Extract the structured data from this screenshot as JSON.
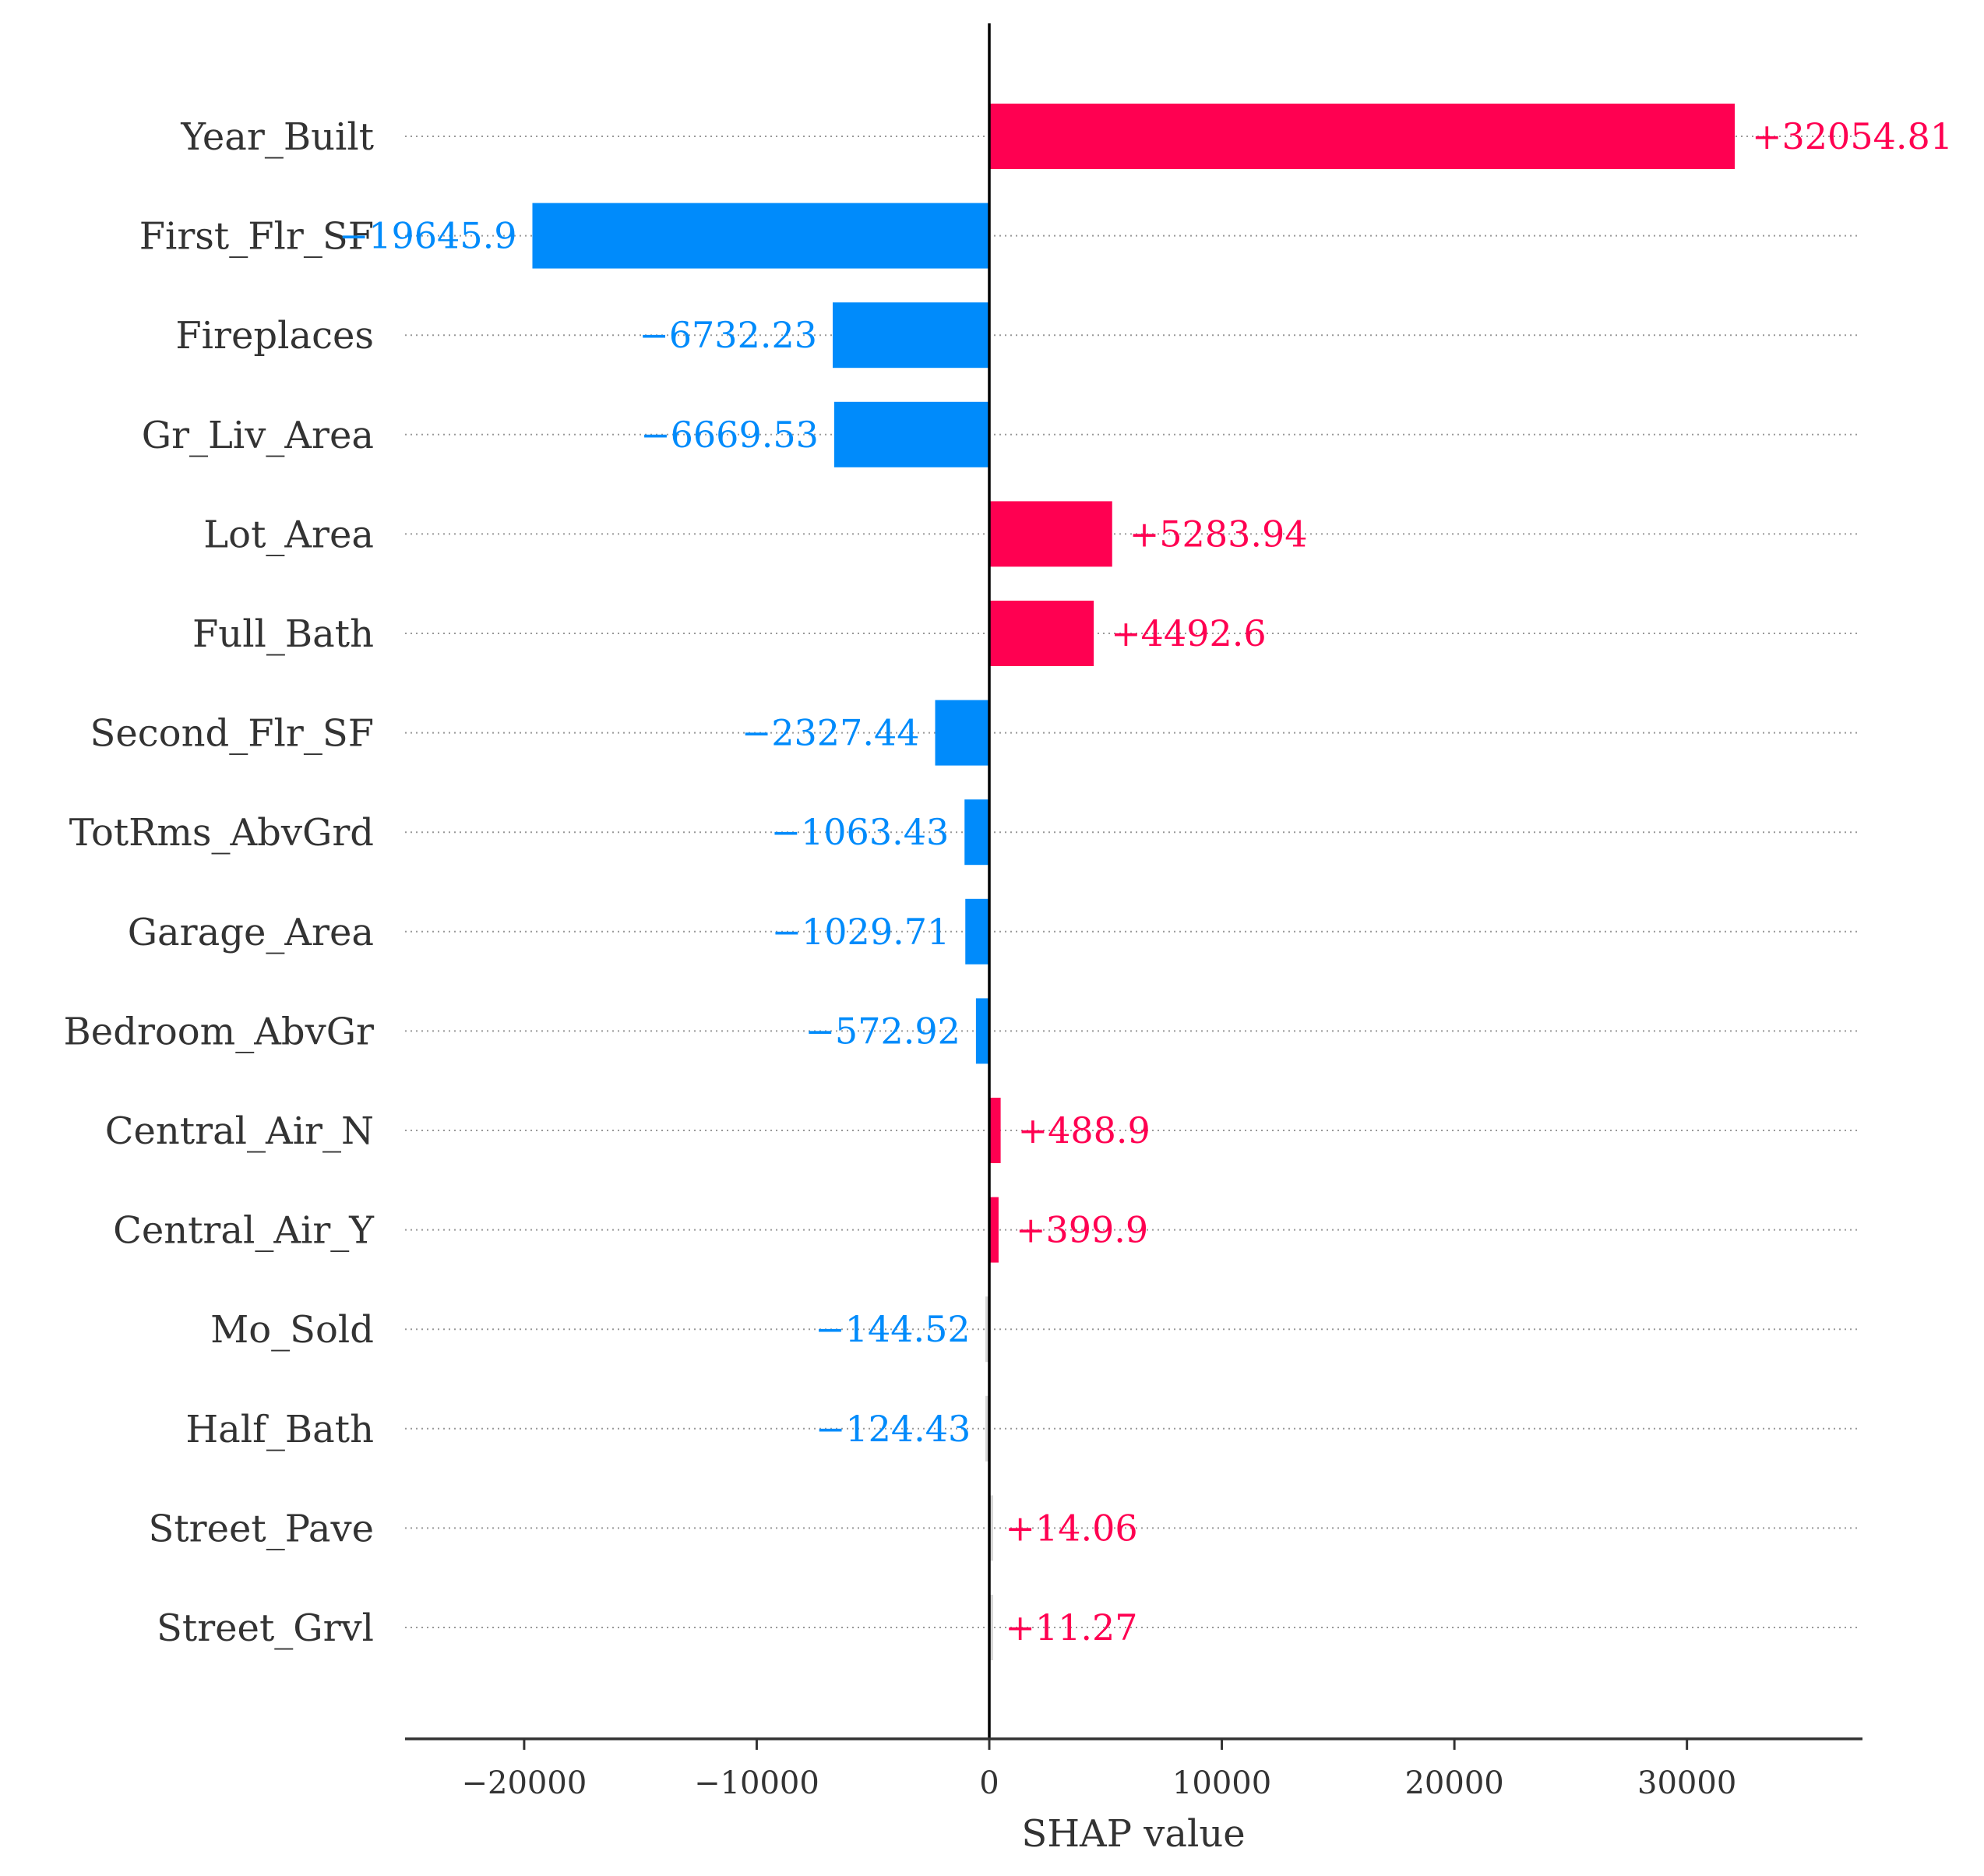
{
  "chart_data": {
    "type": "bar",
    "orientation": "horizontal",
    "xlabel": "SHAP value",
    "xlim": [
      -25000,
      37500
    ],
    "xticks": [
      -20000,
      -10000,
      0,
      10000,
      20000,
      30000
    ],
    "xtick_labels": [
      "−20000",
      "−10000",
      "0",
      "10000",
      "20000",
      "30000"
    ],
    "grid": "horizontal dotted lines per feature",
    "colors": {
      "positive": "#ff0051",
      "negative": "#008bfb",
      "faint": "#d8d8d8"
    },
    "bars": [
      {
        "feature": "Year_Built",
        "value": 32054.81,
        "label": "+32054.81"
      },
      {
        "feature": "First_Flr_SF",
        "value": -19645.9,
        "label": "−19645.9"
      },
      {
        "feature": "Fireplaces",
        "value": -6732.23,
        "label": "−6732.23"
      },
      {
        "feature": "Gr_Liv_Area",
        "value": -6669.53,
        "label": "−6669.53"
      },
      {
        "feature": "Lot_Area",
        "value": 5283.94,
        "label": "+5283.94"
      },
      {
        "feature": "Full_Bath",
        "value": 4492.6,
        "label": "+4492.6"
      },
      {
        "feature": "Second_Flr_SF",
        "value": -2327.44,
        "label": "−2327.44"
      },
      {
        "feature": "TotRms_AbvGrd",
        "value": -1063.43,
        "label": "−1063.43"
      },
      {
        "feature": "Garage_Area",
        "value": -1029.71,
        "label": "−1029.71"
      },
      {
        "feature": "Bedroom_AbvGr",
        "value": -572.92,
        "label": "−572.92"
      },
      {
        "feature": "Central_Air_N",
        "value": 488.9,
        "label": "+488.9"
      },
      {
        "feature": "Central_Air_Y",
        "value": 399.9,
        "label": "+399.9"
      },
      {
        "feature": "Mo_Sold",
        "value": -144.52,
        "label": "−144.52"
      },
      {
        "feature": "Half_Bath",
        "value": -124.43,
        "label": "−124.43"
      },
      {
        "feature": "Street_Pave",
        "value": 14.06,
        "label": "+14.06"
      },
      {
        "feature": "Street_Grvl",
        "value": 11.27,
        "label": "+11.27"
      }
    ]
  }
}
